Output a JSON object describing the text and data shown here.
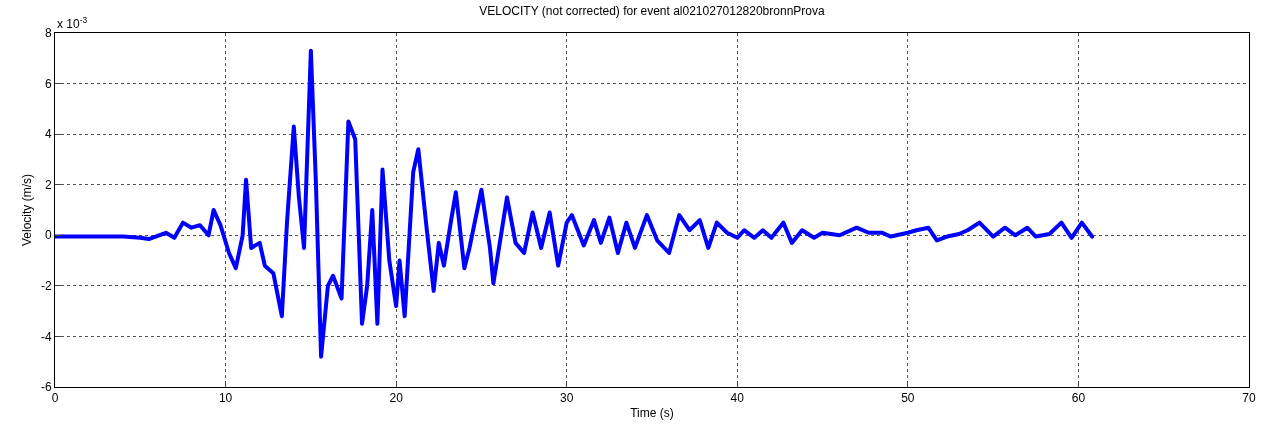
{
  "chart_data": {
    "type": "line",
    "title": "VELOCITY (not corrected) for event al021027012820bronnProva",
    "xlabel": "Time (s)",
    "ylabel": "Velocity (m/s)",
    "annotations": [
      "x 10$^{-3}$"
    ],
    "xlim": [
      0,
      70
    ],
    "xticks": [
      0,
      10,
      20,
      30,
      40,
      50,
      60,
      70
    ],
    "ylim": [
      -6,
      8
    ],
    "yticks": [
      -6,
      -4,
      -2,
      0,
      2,
      4,
      6,
      8
    ],
    "grid": true,
    "line_style": "solid",
    "marker": "none",
    "series": [
      {
        "color": "#0000ff",
        "x": [
          0,
          1,
          2,
          3,
          4,
          5,
          5.5,
          6.5,
          7,
          7.5,
          8,
          8.5,
          9,
          9.3,
          9.7,
          10.2,
          10.6,
          11,
          11.2,
          11.5,
          12,
          12.3,
          12.8,
          13.3,
          13.6,
          14,
          14.3,
          14.6,
          15,
          15.3,
          15.6,
          16,
          16.3,
          16.8,
          17.2,
          17.6,
          18,
          18.3,
          18.6,
          18.9,
          19.2,
          19.6,
          20,
          20.2,
          20.5,
          21,
          21.3,
          21.8,
          22.2,
          22.5,
          22.8,
          23.2,
          23.5,
          24,
          24.3,
          25,
          25.5,
          25.7,
          26.5,
          27,
          27.5,
          28,
          28.5,
          29,
          29.5,
          30,
          30.3,
          31,
          31.6,
          32,
          32.5,
          33,
          33.5,
          34,
          34.7,
          35.3,
          36,
          36.6,
          37.2,
          37.8,
          38.3,
          38.8,
          39.4,
          40,
          40.4,
          41,
          41.5,
          42,
          42.7,
          43.2,
          43.8,
          44.5,
          45,
          46,
          47,
          47.7,
          48.5,
          49,
          50,
          50.5,
          51.2,
          51.7,
          52.3,
          53,
          53.5,
          54.2,
          55,
          55.7,
          56.3,
          57,
          57.5,
          58.3,
          59,
          59.6,
          60.2,
          60.8
        ],
        "values": [
          -0.05,
          -0.05,
          -0.05,
          -0.05,
          -0.05,
          -0.1,
          -0.15,
          0.1,
          -0.1,
          0.5,
          0.3,
          0.4,
          0,
          1.0,
          0.4,
          -0.7,
          -1.3,
          0,
          2.2,
          -0.5,
          -0.3,
          -1.2,
          -1.5,
          -3.2,
          0.5,
          4.3,
          1.5,
          -0.5,
          7.3,
          2,
          -4.8,
          -2,
          -1.6,
          -2.5,
          4.5,
          3.8,
          -3.5,
          -2,
          1,
          -3.5,
          2.6,
          -1,
          -2.8,
          -1,
          -3.2,
          2.5,
          3.4,
          0.2,
          -2.2,
          -0.3,
          -1.2,
          0.5,
          1.7,
          -1.3,
          -0.5,
          1.8,
          -0.5,
          -1.9,
          1.5,
          -0.3,
          -0.7,
          0.9,
          -0.5,
          0.9,
          -1.2,
          0.5,
          0.8,
          -0.4,
          0.6,
          -0.3,
          0.7,
          -0.7,
          0.5,
          -0.5,
          0.8,
          -0.2,
          -0.7,
          0.8,
          0.2,
          0.6,
          -0.5,
          0.5,
          0.1,
          -0.1,
          0.2,
          -0.1,
          0.2,
          -0.1,
          0.5,
          -0.3,
          0.2,
          -0.1,
          0.1,
          0,
          0.3,
          0.1,
          0.1,
          -0.05,
          0.1,
          0.2,
          0.3,
          -0.2,
          -0.05,
          0.05,
          0.2,
          0.5,
          -0.05,
          0.3,
          0,
          0.3,
          -0.05,
          0.05,
          0.5,
          -0.1,
          0.5,
          -0.05
        ]
      }
    ]
  }
}
